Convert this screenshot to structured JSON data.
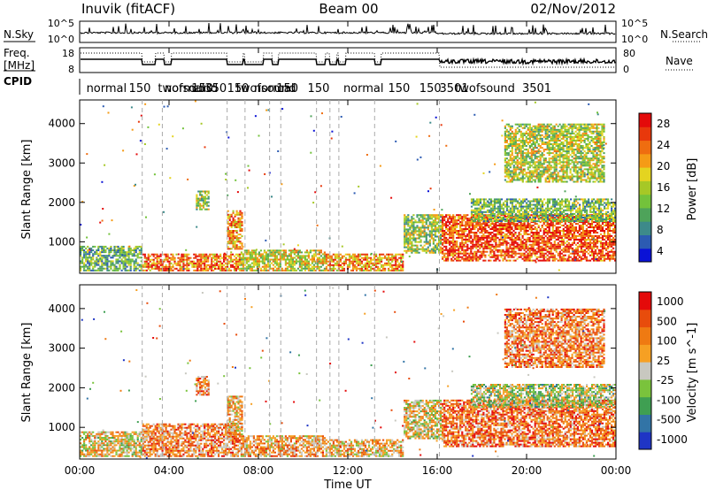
{
  "header": {
    "station": "Inuvik (fitACF)",
    "beam": "Beam 00",
    "date": "02/Nov/2012"
  },
  "small_panels": {
    "nsky_label": "N.Sky",
    "nsky_ticks": [
      "10^5",
      "10^0"
    ],
    "nsearch_label": "N.Search",
    "nsearch_ticks": [
      "10^5",
      "10^0"
    ],
    "freq_label_1": "Freq.",
    "freq_label_2": "[MHz]",
    "freq_ticks": [
      "18",
      "8"
    ],
    "nave_label": "Nave",
    "nave_ticks": [
      "80",
      "0"
    ],
    "cpid_label": "CPID",
    "cpid_entries": [
      {
        "text": "normal",
        "hour": 0.3
      },
      {
        "text": "150",
        "hour": 2.2
      },
      {
        "text": "twofsound",
        "hour": 3.5
      },
      {
        "text": "normal",
        "hour": 3.8
      },
      {
        "text": "150",
        "hour": 5.0
      },
      {
        "text": "350",
        "hour": 5.6
      },
      {
        "text": "150",
        "hour": 6.6
      },
      {
        "text": "twofsound",
        "hour": 7.0
      },
      {
        "text": "normal",
        "hour": 7.8
      },
      {
        "text": "150",
        "hour": 8.8
      },
      {
        "text": "150",
        "hour": 10.2
      },
      {
        "text": "normal",
        "hour": 11.8
      },
      {
        "text": "150",
        "hour": 13.8
      },
      {
        "text": "150",
        "hour": 15.2
      },
      {
        "text": "3501",
        "hour": 16.1
      },
      {
        "text": "twofsound",
        "hour": 16.8
      },
      {
        "text": "3501",
        "hour": 19.8
      }
    ]
  },
  "chart_data": [
    {
      "type": "heatmap",
      "name": "power",
      "ylabel": "Slant Range [km]",
      "y_ticks": [
        1000,
        2000,
        3000,
        4000
      ],
      "ylim": [
        200,
        4600
      ],
      "colorbar_label": "Power [dB]",
      "colorbar_ticks": [
        "28",
        "24",
        "20",
        "16",
        "12",
        "8",
        "4"
      ],
      "colorscale": [
        "#0a12d6",
        "#2c5bb2",
        "#3d8a8a",
        "#4ea35a",
        "#73c23b",
        "#a6c826",
        "#e4d420",
        "#f59b16",
        "#ef6d10",
        "#e8380c",
        "#e40a0a"
      ],
      "regions": [
        {
          "h0": 0.0,
          "h1": 2.8,
          "r0": 250,
          "r1": 900,
          "level": 0.35
        },
        {
          "h0": 2.8,
          "h1": 7.2,
          "r0": 250,
          "r1": 700,
          "level": 0.75
        },
        {
          "h0": 5.2,
          "h1": 5.8,
          "r0": 1800,
          "r1": 2300,
          "level": 0.45
        },
        {
          "h0": 6.6,
          "h1": 7.3,
          "r0": 800,
          "r1": 1800,
          "level": 0.7
        },
        {
          "h0": 7.2,
          "h1": 11.0,
          "r0": 250,
          "r1": 800,
          "level": 0.55
        },
        {
          "h0": 11.0,
          "h1": 14.5,
          "r0": 250,
          "r1": 700,
          "level": 0.7
        },
        {
          "h0": 14.5,
          "h1": 16.2,
          "r0": 700,
          "r1": 1700,
          "level": 0.45
        },
        {
          "h0": 16.2,
          "h1": 24.0,
          "r0": 500,
          "r1": 1700,
          "level": 0.85
        },
        {
          "h0": 17.5,
          "h1": 24.0,
          "r0": 1500,
          "r1": 2100,
          "level": 0.4
        },
        {
          "h0": 19.0,
          "h1": 23.5,
          "r0": 2500,
          "r1": 4000,
          "level": 0.5
        }
      ]
    },
    {
      "type": "heatmap",
      "name": "velocity",
      "ylabel": "Slant Range [km]",
      "y_ticks": [
        1000,
        2000,
        3000,
        4000
      ],
      "ylim": [
        200,
        4600
      ],
      "colorbar_label": "Velocity [m s^-1]",
      "colorbar_ticks": [
        "1000",
        "500",
        "100",
        "25",
        "-25",
        "-100",
        "-500",
        "-1000"
      ],
      "colorscale": [
        "#1f35c5",
        "#3274a6",
        "#3f9f52",
        "#7ac33c",
        "#c8c8c0",
        "#f6a023",
        "#ef7a12",
        "#e84c0c",
        "#e40a0a"
      ],
      "regions": [
        {
          "h0": 0.0,
          "h1": 2.8,
          "r0": 250,
          "r1": 900,
          "level": 0.55
        },
        {
          "h0": 2.8,
          "h1": 7.2,
          "r0": 250,
          "r1": 1100,
          "level": 0.7
        },
        {
          "h0": 5.2,
          "h1": 5.8,
          "r0": 1800,
          "r1": 2300,
          "level": 0.7
        },
        {
          "h0": 6.6,
          "h1": 7.3,
          "r0": 800,
          "r1": 1800,
          "level": 0.6
        },
        {
          "h0": 7.2,
          "h1": 11.0,
          "r0": 250,
          "r1": 800,
          "level": 0.65
        },
        {
          "h0": 11.0,
          "h1": 14.5,
          "r0": 250,
          "r1": 700,
          "level": 0.6
        },
        {
          "h0": 14.5,
          "h1": 16.2,
          "r0": 700,
          "r1": 1700,
          "level": 0.55
        },
        {
          "h0": 16.2,
          "h1": 24.0,
          "r0": 500,
          "r1": 1700,
          "level": 0.75
        },
        {
          "h0": 17.5,
          "h1": 24.0,
          "r0": 1500,
          "r1": 2100,
          "level": 0.45
        },
        {
          "h0": 19.0,
          "h1": 23.5,
          "r0": 2500,
          "r1": 4000,
          "level": 0.72
        }
      ]
    }
  ],
  "x_axis": {
    "label": "Time UT",
    "ticks": [
      "00:00",
      "04:00",
      "08:00",
      "12:00",
      "16:00",
      "20:00",
      "00:00"
    ],
    "tick_hours": [
      0,
      4,
      8,
      12,
      16,
      20,
      24
    ]
  },
  "mode_change_hours": [
    2.8,
    3.7,
    6.6,
    7.4,
    8.5,
    9.0,
    10.6,
    11.2,
    11.6,
    13.2,
    16.1
  ]
}
